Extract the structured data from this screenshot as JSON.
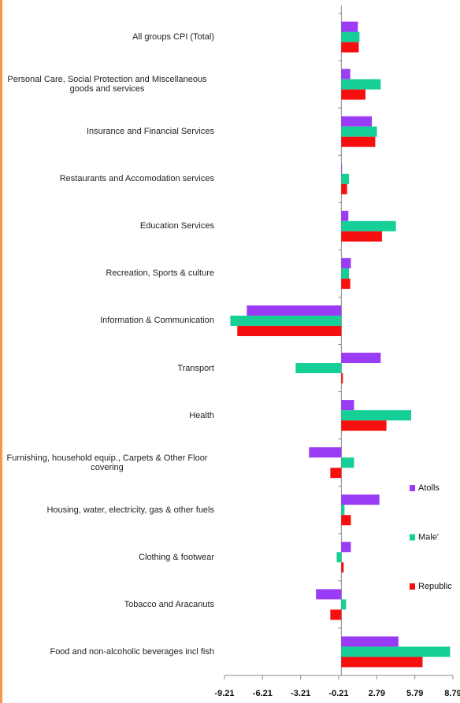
{
  "chart_data": {
    "type": "bar",
    "orientation": "horizontal",
    "categories": [
      "All groups CPI (Total)",
      "Personal Care, Social Protection and Miscellaneous goods and services",
      "Insurance and Financial Services",
      "Restaurants and Accomodation services",
      "Education Services",
      "Recreation, Sports & culture",
      "Information & Communication",
      "Transport",
      "Health",
      "Furnishing, household equip., Carpets & Other Floor covering",
      "Housing, water, electricity, gas & other fuels",
      "Clothing & footwear",
      "Tobacco and Aracanuts",
      "Food and non-alcoholic beverages incl fish"
    ],
    "series": [
      {
        "name": "Atolls",
        "color": "#9a3cf5",
        "values": [
          1.3,
          0.7,
          2.4,
          0.05,
          0.55,
          0.75,
          -7.45,
          3.1,
          1.0,
          -2.55,
          3.0,
          0.75,
          -2.0,
          4.5
        ]
      },
      {
        "name": "Male'",
        "color": "#16cf97",
        "values": [
          1.43,
          3.1,
          2.8,
          0.6,
          4.3,
          0.6,
          -8.75,
          -3.6,
          5.5,
          1.0,
          0.25,
          -0.37,
          0.37,
          8.57
        ]
      },
      {
        "name": "Republic",
        "color": "#f50f0f",
        "values": [
          1.37,
          1.9,
          2.67,
          0.45,
          3.2,
          0.7,
          -8.2,
          0.12,
          3.55,
          -0.87,
          0.75,
          0.18,
          -0.87,
          6.4
        ]
      }
    ],
    "xlim": [
      -9.21,
      8.79
    ],
    "xticks": [
      -9.21,
      -6.21,
      -3.21,
      -0.21,
      2.79,
      5.79,
      8.79
    ],
    "legend": "right"
  }
}
